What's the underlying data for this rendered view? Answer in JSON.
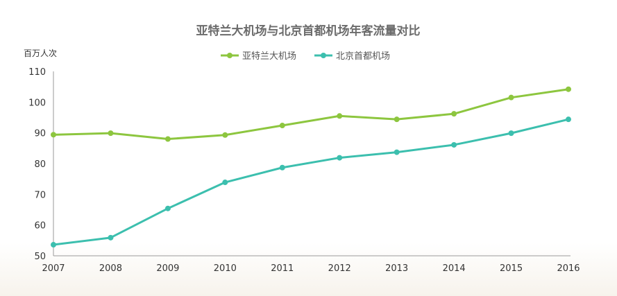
{
  "chart_data": {
    "type": "line",
    "title": "亚特兰大机场与北京首都机场年客流量对比",
    "ylabel": "百万人次",
    "xlabel": "",
    "x": [
      "2007",
      "2008",
      "2009",
      "2010",
      "2011",
      "2012",
      "2013",
      "2014",
      "2015",
      "2016"
    ],
    "ylim": [
      50,
      110
    ],
    "yticks": [
      50,
      60,
      70,
      80,
      90,
      100,
      110
    ],
    "grid": false,
    "legend_position": "top-center",
    "series": [
      {
        "name": "亚特兰大机场",
        "color": "#8dc63f",
        "values": [
          89.4,
          89.9,
          88.0,
          89.3,
          92.4,
          95.5,
          94.4,
          96.2,
          101.5,
          104.2
        ]
      },
      {
        "name": "北京首都机场",
        "color": "#3cbfae",
        "values": [
          53.6,
          55.9,
          65.4,
          73.9,
          78.7,
          81.9,
          83.7,
          86.1,
          89.9,
          94.4
        ]
      }
    ]
  }
}
